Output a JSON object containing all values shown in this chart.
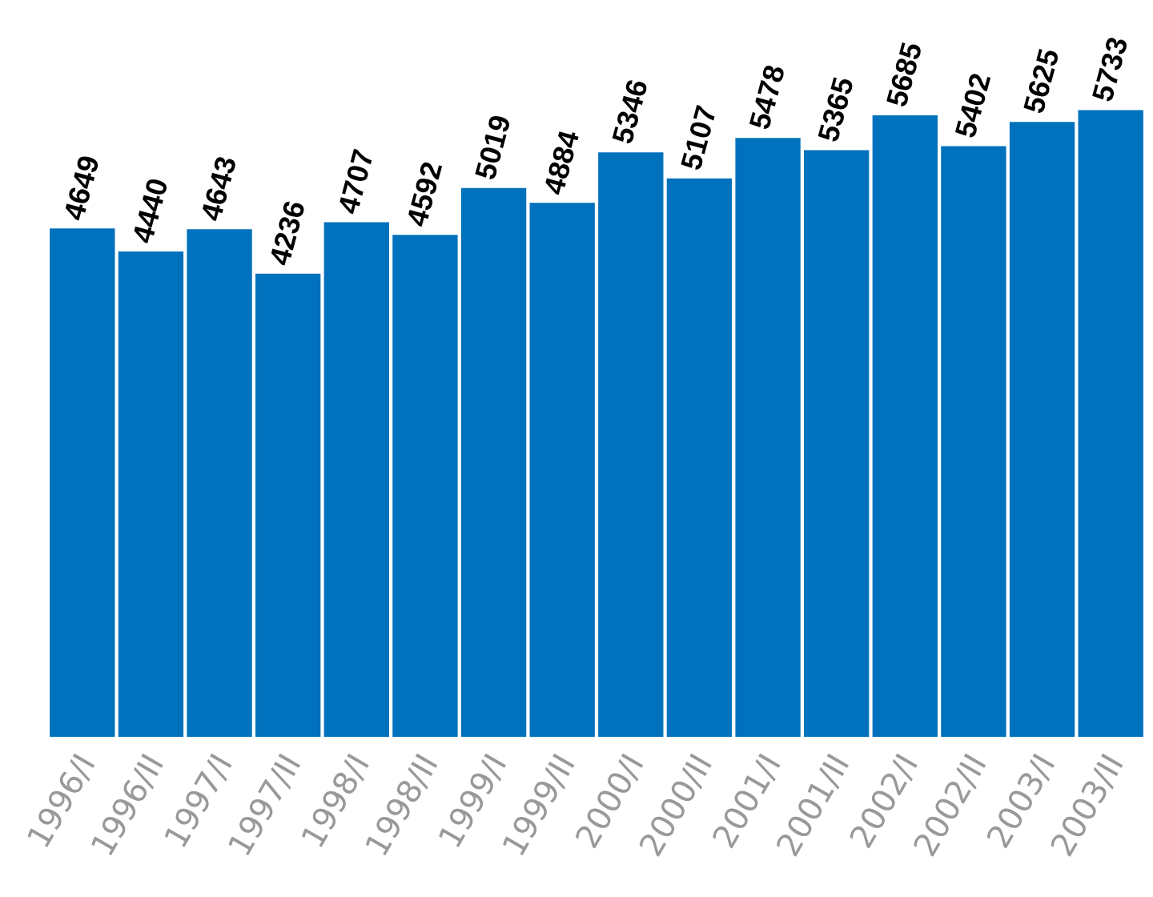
{
  "chart_data": {
    "type": "bar",
    "categories": [
      "1996/I",
      "1996/II",
      "1997/I",
      "1997/II",
      "1998/I",
      "1998/II",
      "1999/I",
      "1999/II",
      "2000/I",
      "2000/II",
      "2001/I",
      "2001/II",
      "2002/I",
      "2002/II",
      "2003/I",
      "2003/II"
    ],
    "values": [
      4649,
      4440,
      4643,
      4236,
      4707,
      4592,
      5019,
      4884,
      5346,
      5107,
      5478,
      5365,
      5685,
      5402,
      5625,
      5733
    ],
    "color": "#0071bc",
    "data_labels": true
  }
}
